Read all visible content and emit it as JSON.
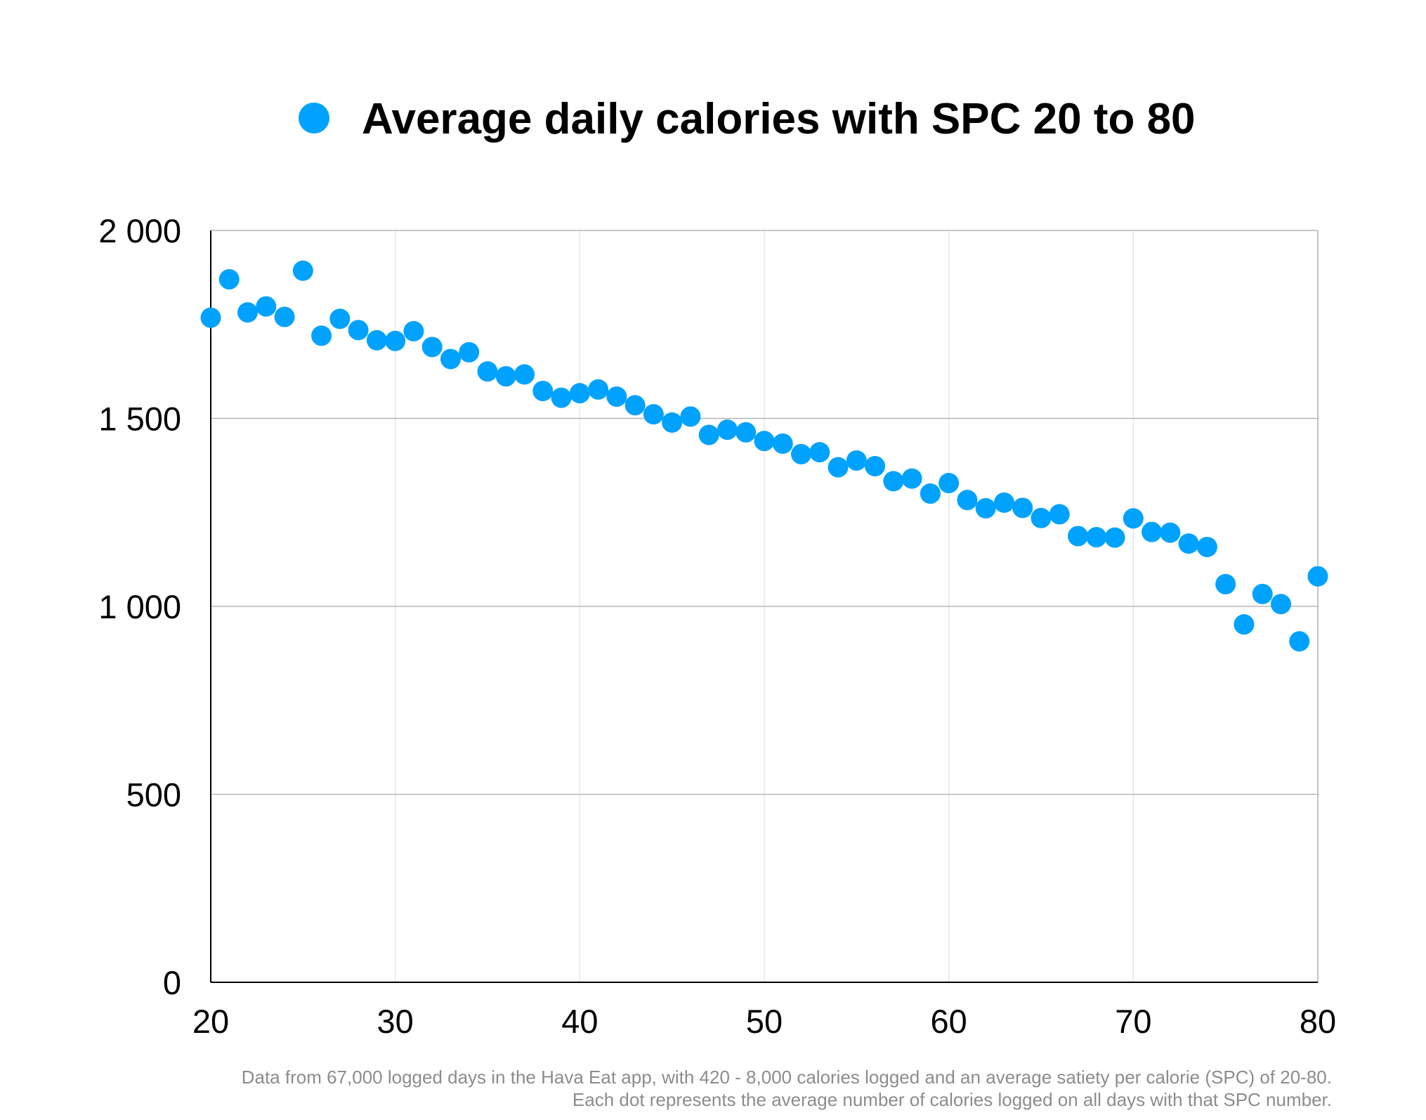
{
  "colors": {
    "series": "#00a2ff",
    "grid": "#b5b5b5",
    "vgrid": "#e6e6e6",
    "axis": "#000000",
    "note": "#8c8c8c"
  },
  "legend": {
    "label": "Average daily calories with SPC 20 to 80",
    "icon": "filled-circle-icon",
    "placement": "top-center"
  },
  "footnote": {
    "line1": "Data from 67,000 logged days in the Hava Eat app, with 420 - 8,000 calories logged and an average satiety per calorie (SPC) of 20-80.",
    "line2": "Each dot represents the average number of calories logged on all days with that SPC number."
  },
  "chart_data": {
    "type": "scatter",
    "title": "",
    "xlabel": "",
    "ylabel": "",
    "xlim": [
      20,
      80
    ],
    "ylim": [
      0,
      2000
    ],
    "x_ticks": [
      20,
      30,
      40,
      50,
      60,
      70,
      80
    ],
    "x_tick_labels": [
      "20",
      "30",
      "40",
      "50",
      "60",
      "70",
      "80"
    ],
    "y_ticks": [
      0,
      500,
      1000,
      1500,
      2000
    ],
    "y_tick_labels": [
      "0",
      "500",
      "1 000",
      "1 500",
      "2 000"
    ],
    "grid": true,
    "legend": "top-center",
    "series": [
      {
        "name": "Average daily calories with SPC 20 to 80",
        "x": [
          20,
          21,
          22,
          23,
          24,
          25,
          26,
          27,
          28,
          29,
          30,
          31,
          32,
          33,
          34,
          35,
          36,
          37,
          38,
          39,
          40,
          41,
          42,
          43,
          44,
          45,
          46,
          47,
          48,
          49,
          50,
          51,
          52,
          53,
          54,
          55,
          56,
          57,
          58,
          59,
          60,
          61,
          62,
          63,
          64,
          65,
          66,
          67,
          68,
          69,
          70,
          71,
          72,
          73,
          74,
          75,
          76,
          77,
          78,
          79,
          80
        ],
        "y": [
          1768,
          1870,
          1782,
          1798,
          1770,
          1893,
          1720,
          1765,
          1735,
          1708,
          1706,
          1732,
          1690,
          1658,
          1676,
          1625,
          1612,
          1617,
          1573,
          1555,
          1567,
          1577,
          1558,
          1535,
          1511,
          1489,
          1505,
          1456,
          1470,
          1463,
          1440,
          1433,
          1405,
          1410,
          1370,
          1388,
          1373,
          1333,
          1340,
          1300,
          1328,
          1283,
          1261,
          1276,
          1262,
          1235,
          1245,
          1187,
          1184,
          1183,
          1234,
          1198,
          1196,
          1167,
          1158,
          1059,
          952,
          1033,
          1006,
          907,
          1080
        ]
      }
    ]
  }
}
